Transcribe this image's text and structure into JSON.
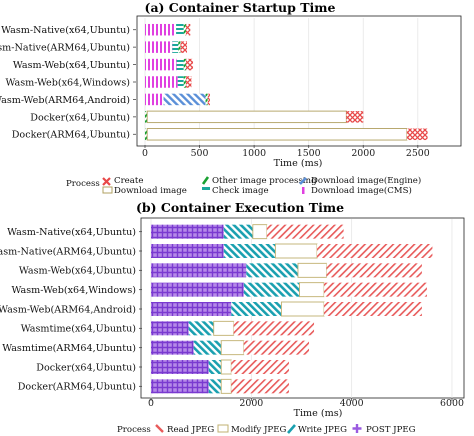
{
  "chart_data": [
    {
      "type": "bar",
      "orientation": "horizontal",
      "stacked": true,
      "title": "(a) Container Startup Time",
      "xlabel": "Time (ms)",
      "xlim": [
        0,
        2850
      ],
      "xticks": [
        0,
        500,
        1000,
        1500,
        2000,
        2500
      ],
      "categories": [
        "Wasm-Native(x64,Ubuntu)",
        "Wasm-Native(ARM64,Ubuntu)",
        "Wasm-Web(x64,Ubuntu)",
        "Wasm-Web(x64,Windows)",
        "Wasm-Web(ARM64,Android)",
        "Docker(x64,Ubuntu)",
        "Docker(ARM64,Ubuntu)"
      ],
      "legend_title": "Process",
      "legend_position": "bottom",
      "series": [
        {
          "name": "Download image(CMS)",
          "color": "#e040e0",
          "pattern": "vertical",
          "values": [
            285,
            250,
            290,
            300,
            170,
            0,
            0
          ]
        },
        {
          "name": "Download image(Engine)",
          "color": "#5a8fd8",
          "pattern": "diagonal-down",
          "values": [
            0,
            0,
            0,
            0,
            385,
            0,
            0
          ]
        },
        {
          "name": "Check image",
          "color": "#1aa89a",
          "pattern": "horizontal",
          "values": [
            70,
            55,
            65,
            55,
            0,
            0,
            0
          ]
        },
        {
          "name": "Other image processing",
          "color": "#18a030",
          "pattern": "diagonal-up",
          "values": [
            20,
            20,
            20,
            20,
            20,
            20,
            20
          ]
        },
        {
          "name": "Download image",
          "color": "#b0a060",
          "pattern": "none",
          "values": [
            0,
            0,
            0,
            0,
            0,
            1825,
            2380
          ]
        },
        {
          "name": "Create",
          "color": "#e84848",
          "pattern": "cross",
          "values": [
            40,
            60,
            65,
            50,
            20,
            155,
            190
          ]
        }
      ]
    },
    {
      "type": "bar",
      "orientation": "horizontal",
      "stacked": true,
      "title": "(b) Container Execution Time",
      "xlabel": "Time (ms)",
      "xlim": [
        0,
        6100
      ],
      "xticks": [
        0,
        2000,
        4000,
        6000
      ],
      "categories": [
        "Wasm-Native(x64,Ubuntu)",
        "Wasm-Native(ARM64,Ubuntu)",
        "Wasm-Web(x64,Ubuntu)",
        "Wasm-Web(x64,Windows)",
        "Wasm-Web(ARM64,Android)",
        "Wasmtime(x64,Ubuntu)",
        "Wasmtime(ARM64,Ubuntu)",
        "Docker(x64,Ubuntu)",
        "Docker(ARM64,Ubuntu)"
      ],
      "legend_title": "Process",
      "legend_position": "bottom",
      "series": [
        {
          "name": "POST JPEG",
          "color": "#9a5ae0",
          "pattern": "cross",
          "values": [
            1450,
            1450,
            1900,
            1850,
            1600,
            750,
            850,
            1150,
            1150
          ]
        },
        {
          "name": "Write JPEG",
          "color": "#1aa0b0",
          "pattern": "diagonal-down",
          "values": [
            580,
            1030,
            1030,
            1110,
            1000,
            500,
            550,
            250,
            250
          ]
        },
        {
          "name": "Modify JPEG",
          "color": "#c0b070",
          "pattern": "none",
          "values": [
            280,
            830,
            570,
            490,
            850,
            400,
            450,
            200,
            200
          ]
        },
        {
          "name": "Read JPEG",
          "color": "#e85a5a",
          "pattern": "diagonal-up",
          "values": [
            1530,
            2300,
            1900,
            2050,
            1950,
            1600,
            1300,
            1150,
            1150
          ]
        }
      ]
    }
  ],
  "legend_a": [
    "Create",
    "Download image",
    "Other image processing",
    "Check image",
    "Download image(Engine)",
    "Download image(CMS)"
  ],
  "legend_b": [
    "Read JPEG",
    "Modify JPEG",
    "Write JPEG",
    "POST JPEG"
  ]
}
